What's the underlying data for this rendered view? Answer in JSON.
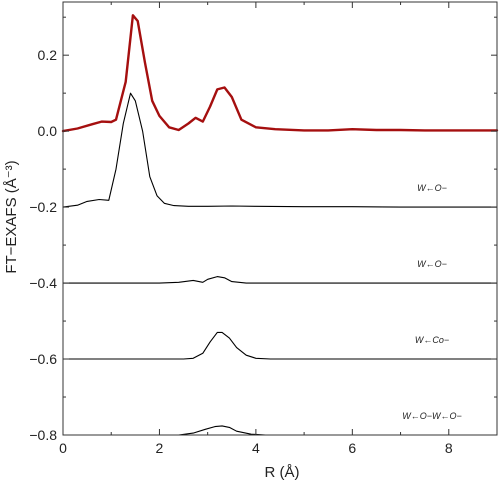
{
  "chart_data": {
    "type": "line",
    "xlabel": "R (Å)",
    "ylabel": "FT−EXAFS (Å⁻³)",
    "xlim": [
      0,
      9
    ],
    "ylim": [
      -0.8,
      0.34
    ],
    "xticks": [
      0,
      2,
      4,
      6,
      8
    ],
    "xtick_labels": [
      "0",
      "2",
      "4",
      "6",
      "8"
    ],
    "yticks": [
      -0.8,
      -0.6,
      -0.4,
      -0.2,
      0.0,
      0.2
    ],
    "ytick_labels": [
      "−0.8",
      "−0.6",
      "−0.4",
      "−0.2",
      "0.0",
      "0.2"
    ],
    "grid": false,
    "series": [
      {
        "color": "#a50f0f",
        "x": [
          0,
          0.3,
          0.6,
          0.8,
          1.0,
          1.1,
          1.3,
          1.45,
          1.55,
          1.7,
          1.85,
          2.0,
          2.2,
          2.4,
          2.6,
          2.75,
          2.9,
          3.05,
          3.2,
          3.35,
          3.5,
          3.7,
          4.0,
          4.4,
          5.0,
          5.5,
          6.0,
          6.5,
          7.0,
          7.5,
          8.0,
          9.0
        ],
        "y": [
          0.0,
          0.007,
          0.018,
          0.025,
          0.024,
          0.03,
          0.13,
          0.305,
          0.29,
          0.18,
          0.08,
          0.04,
          0.01,
          0.003,
          0.02,
          0.035,
          0.025,
          0.065,
          0.11,
          0.115,
          0.09,
          0.03,
          0.01,
          0.005,
          0.002,
          0.002,
          0.005,
          0.003,
          0.003,
          0.002,
          0.002,
          0.002
        ]
      },
      {
        "color": "#000000",
        "annotation": "W←O−",
        "x": [
          0,
          0.3,
          0.5,
          0.75,
          0.95,
          1.1,
          1.25,
          1.4,
          1.5,
          1.65,
          1.8,
          1.95,
          2.1,
          2.3,
          2.6,
          3.0,
          3.5,
          4.0,
          5.0,
          6.0,
          7.0,
          9.0
        ],
        "y": [
          -0.2,
          -0.195,
          -0.185,
          -0.18,
          -0.182,
          -0.1,
          0.02,
          0.1,
          0.08,
          0.0,
          -0.12,
          -0.17,
          -0.19,
          -0.196,
          -0.198,
          -0.198,
          -0.197,
          -0.198,
          -0.199,
          -0.199,
          -0.2,
          -0.2
        ]
      },
      {
        "color": "#000000",
        "annotation": "W←O−",
        "x": [
          0,
          2.0,
          2.4,
          2.7,
          2.9,
          3.0,
          3.2,
          3.35,
          3.5,
          3.8,
          4.2,
          9.0
        ],
        "y": [
          -0.4,
          -0.4,
          -0.398,
          -0.393,
          -0.398,
          -0.39,
          -0.383,
          -0.386,
          -0.396,
          -0.4,
          -0.4,
          -0.4
        ]
      },
      {
        "color": "#000000",
        "annotation": "W←Co−",
        "x": [
          0,
          2.5,
          2.7,
          2.9,
          3.05,
          3.2,
          3.3,
          3.45,
          3.6,
          3.8,
          4.0,
          4.3,
          9.0
        ],
        "y": [
          -0.6,
          -0.6,
          -0.598,
          -0.585,
          -0.555,
          -0.53,
          -0.53,
          -0.545,
          -0.57,
          -0.59,
          -0.598,
          -0.6,
          -0.6
        ]
      },
      {
        "color": "#000000",
        "annotation": "W←O−W←O−",
        "x": [
          2.4,
          2.7,
          2.95,
          3.15,
          3.3,
          3.45,
          3.6,
          3.9,
          4.2
        ],
        "y": [
          -0.8,
          -0.795,
          -0.785,
          -0.778,
          -0.776,
          -0.78,
          -0.79,
          -0.798,
          -0.8
        ]
      }
    ]
  }
}
